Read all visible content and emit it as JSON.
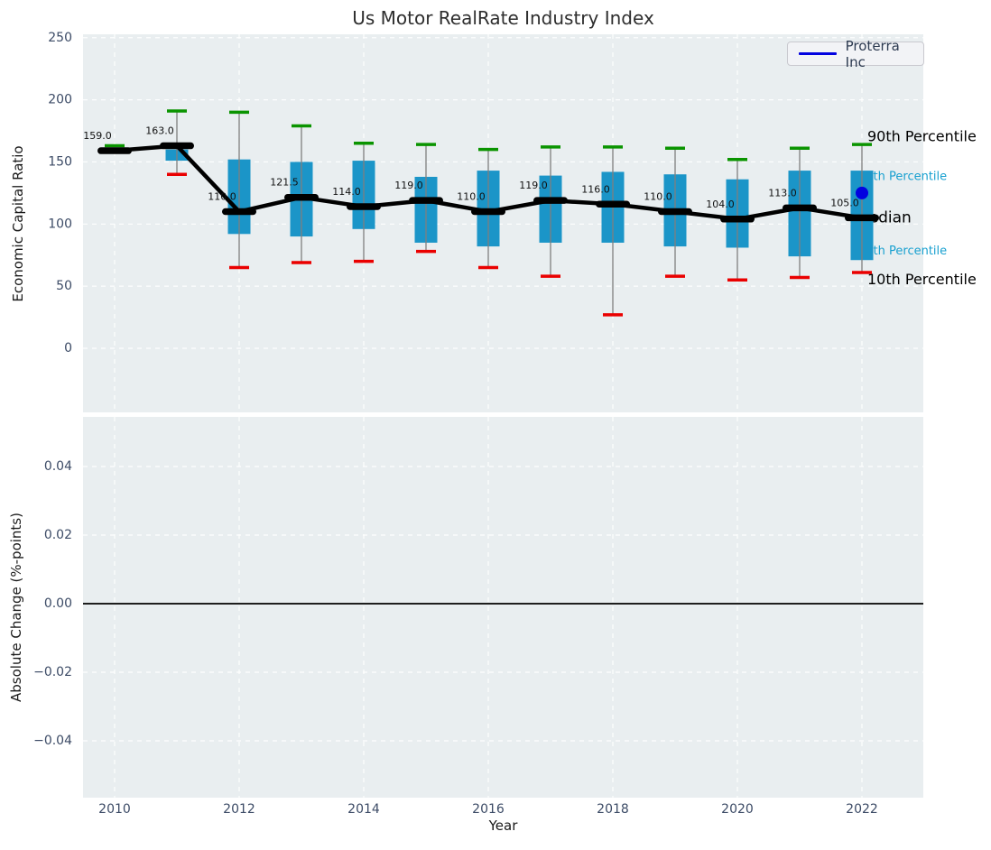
{
  "figure": {
    "background": "#ffffff",
    "plot_background": "#e9eef0",
    "grid_color": "#ffffff",
    "tick_color": "#3c4b66"
  },
  "chart_data": [
    {
      "type": "boxplot+line",
      "title": "Us Motor RealRate Industry Index",
      "ylabel": "Economic Capital Ratio",
      "ylim": [
        -51,
        253
      ],
      "xlim": [
        2009.5,
        2023
      ],
      "grid": "white dashed, on",
      "legend": {
        "label": "Proterra Inc",
        "color": "#0202e0",
        "position": "upper right"
      },
      "yticks": [
        {
          "label": "250",
          "value": 250
        },
        {
          "label": "200",
          "value": 200
        },
        {
          "label": "150",
          "value": 150
        },
        {
          "label": "100",
          "value": 100
        },
        {
          "label": "50",
          "value": 50
        },
        {
          "label": "0",
          "value": 0
        }
      ],
      "xticks": [
        {
          "label": "2010",
          "value": 2010
        },
        {
          "label": "2012",
          "value": 2012
        },
        {
          "label": "2014",
          "value": 2014
        },
        {
          "label": "2016",
          "value": 2016
        },
        {
          "label": "2018",
          "value": 2018
        },
        {
          "label": "2020",
          "value": 2020
        },
        {
          "label": "2022",
          "value": 2022
        }
      ],
      "boxes": [
        {
          "year": 2010,
          "median": 159,
          "median_label": "159.0",
          "q75": null,
          "q25": null,
          "p90": 163,
          "p10": null
        },
        {
          "year": 2011,
          "median": 163,
          "median_label": "163.0",
          "q75": 160,
          "q25": 151,
          "p90": 191,
          "p10": 140
        },
        {
          "year": 2012,
          "median": 110,
          "median_label": "110.0",
          "q75": 152,
          "q25": 92,
          "p90": 190,
          "p10": 65
        },
        {
          "year": 2013,
          "median": 121.5,
          "median_label": "121.5",
          "q75": 150,
          "q25": 90,
          "p90": 179,
          "p10": 69
        },
        {
          "year": 2014,
          "median": 114,
          "median_label": "114.0",
          "q75": 151,
          "q25": 96,
          "p90": 165,
          "p10": 70
        },
        {
          "year": 2015,
          "median": 119,
          "median_label": "119.0",
          "q75": 138,
          "q25": 85,
          "p90": 164,
          "p10": 78
        },
        {
          "year": 2016,
          "median": 110,
          "median_label": "110.0",
          "q75": 143,
          "q25": 82,
          "p90": 160,
          "p10": 65
        },
        {
          "year": 2017,
          "median": 119,
          "median_label": "119.0",
          "q75": 139,
          "q25": 85,
          "p90": 162,
          "p10": 58
        },
        {
          "year": 2018,
          "median": 116,
          "median_label": "116.0",
          "q75": 142,
          "q25": 85,
          "p90": 162,
          "p10": 27
        },
        {
          "year": 2019,
          "median": 110,
          "median_label": "110.0",
          "q75": 140,
          "q25": 82,
          "p90": 161,
          "p10": 58
        },
        {
          "year": 2020,
          "median": 104,
          "median_label": "104.0",
          "q75": 136,
          "q25": 81,
          "p90": 152,
          "p10": 55
        },
        {
          "year": 2021,
          "median": 113,
          "median_label": "113.0",
          "q75": 143,
          "q25": 74,
          "p90": 161,
          "p10": 57
        },
        {
          "year": 2022,
          "median": 105,
          "median_label": "105.0",
          "q75": 143,
          "q25": 71,
          "p90": 164,
          "p10": 61
        }
      ],
      "proterra_point": {
        "name": "Proterra Inc",
        "year": 2022,
        "value": 125,
        "color": "#0202e0"
      },
      "annotations": [
        {
          "text": "90th Percentile",
          "color": "#000000",
          "font_size": 16,
          "anchor_value": 170
        },
        {
          "text": "75th Percentile",
          "color": "#18a0d0",
          "font_size": 13,
          "anchor_value": 138
        },
        {
          "text": "Median",
          "color": "#000000",
          "font_size": 17,
          "anchor_value": 105
        },
        {
          "text": "25th Percentile",
          "color": "#18a0d0",
          "font_size": 13,
          "anchor_value": 78
        },
        {
          "text": "10th Percentile",
          "color": "#000000",
          "font_size": 16,
          "anchor_value": 55
        }
      ],
      "colors": {
        "box": "#1b95c8",
        "p90_cap": "#0a9400",
        "p10_cap": "#ea0000",
        "whisker": "#7f7f7f",
        "median": "#000000"
      }
    },
    {
      "type": "line",
      "ylabel": "Absolute Change (%-points)",
      "xlabel": "Year",
      "ylim": [
        -0.057,
        0.055
      ],
      "xlim": [
        2009.5,
        2023
      ],
      "grid": "white dashed, on",
      "zero_line": {
        "value": 0,
        "color": "#000000"
      },
      "yticks": [
        {
          "label": "0.04",
          "value": 0.04
        },
        {
          "label": "0.02",
          "value": 0.02
        },
        {
          "label": "0.00",
          "value": 0
        },
        {
          "label": "−0.02",
          "value": -0.02
        },
        {
          "label": "−0.04",
          "value": -0.04
        }
      ],
      "xticks": [
        {
          "label": "2010",
          "value": 2010
        },
        {
          "label": "2012",
          "value": 2012
        },
        {
          "label": "2014",
          "value": 2014
        },
        {
          "label": "2016",
          "value": 2016
        },
        {
          "label": "2018",
          "value": 2018
        },
        {
          "label": "2020",
          "value": 2020
        },
        {
          "label": "2022",
          "value": 2022
        }
      ],
      "series": []
    }
  ]
}
